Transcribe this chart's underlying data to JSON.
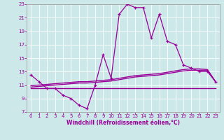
{
  "xlabel": "Windchill (Refroidissement éolien,°C)",
  "bg_color": "#cce8e8",
  "line_color": "#990099",
  "grid_color": "#ffffff",
  "spine_color": "#aaaaaa",
  "xlim": [
    -0.5,
    23.5
  ],
  "ylim": [
    7,
    23
  ],
  "xticks": [
    0,
    1,
    2,
    3,
    4,
    5,
    6,
    7,
    8,
    9,
    10,
    11,
    12,
    13,
    14,
    15,
    16,
    17,
    18,
    19,
    20,
    21,
    22,
    23
  ],
  "yticks": [
    7,
    9,
    11,
    13,
    15,
    17,
    19,
    21,
    23
  ],
  "series1_x": [
    0,
    1,
    2,
    3,
    4,
    5,
    6,
    7,
    8,
    9,
    10,
    11,
    12,
    13,
    14,
    15,
    16,
    17,
    18,
    19,
    20,
    21,
    22,
    23
  ],
  "series1_y": [
    12.5,
    11.5,
    10.5,
    10.5,
    9.5,
    9.0,
    8.0,
    7.5,
    11.0,
    15.5,
    12.0,
    21.5,
    23.0,
    22.5,
    22.5,
    18.0,
    21.5,
    17.5,
    17.0,
    14.0,
    13.5,
    13.0,
    13.0,
    11.5
  ],
  "series2_x": [
    0,
    1,
    2,
    3,
    4,
    5,
    6,
    7,
    8,
    9,
    10,
    11,
    12,
    13,
    14,
    15,
    16,
    17,
    18,
    19,
    20,
    21,
    22,
    23
  ],
  "series2_y": [
    10.5,
    10.5,
    10.5,
    10.5,
    10.5,
    10.5,
    10.5,
    10.5,
    10.5,
    10.5,
    10.5,
    10.5,
    10.5,
    10.5,
    10.5,
    10.5,
    10.5,
    10.5,
    10.5,
    10.5,
    10.5,
    10.5,
    10.5,
    10.5
  ],
  "series3_x": [
    0,
    1,
    2,
    3,
    4,
    5,
    6,
    7,
    8,
    9,
    10,
    11,
    12,
    13,
    14,
    15,
    16,
    17,
    18,
    19,
    20,
    21,
    22,
    23
  ],
  "series3_y": [
    10.7,
    10.8,
    10.9,
    11.0,
    11.1,
    11.2,
    11.3,
    11.3,
    11.4,
    11.5,
    11.6,
    11.8,
    12.0,
    12.2,
    12.3,
    12.4,
    12.5,
    12.7,
    12.9,
    13.1,
    13.2,
    13.2,
    13.2,
    11.5
  ],
  "series4_x": [
    0,
    1,
    2,
    3,
    4,
    5,
    6,
    7,
    8,
    9,
    10,
    11,
    12,
    13,
    14,
    15,
    16,
    17,
    18,
    19,
    20,
    21,
    22,
    23
  ],
  "series4_y": [
    10.9,
    11.0,
    11.1,
    11.2,
    11.3,
    11.4,
    11.5,
    11.5,
    11.6,
    11.7,
    11.8,
    12.0,
    12.2,
    12.4,
    12.5,
    12.6,
    12.7,
    12.9,
    13.1,
    13.3,
    13.4,
    13.4,
    13.3,
    11.5
  ]
}
